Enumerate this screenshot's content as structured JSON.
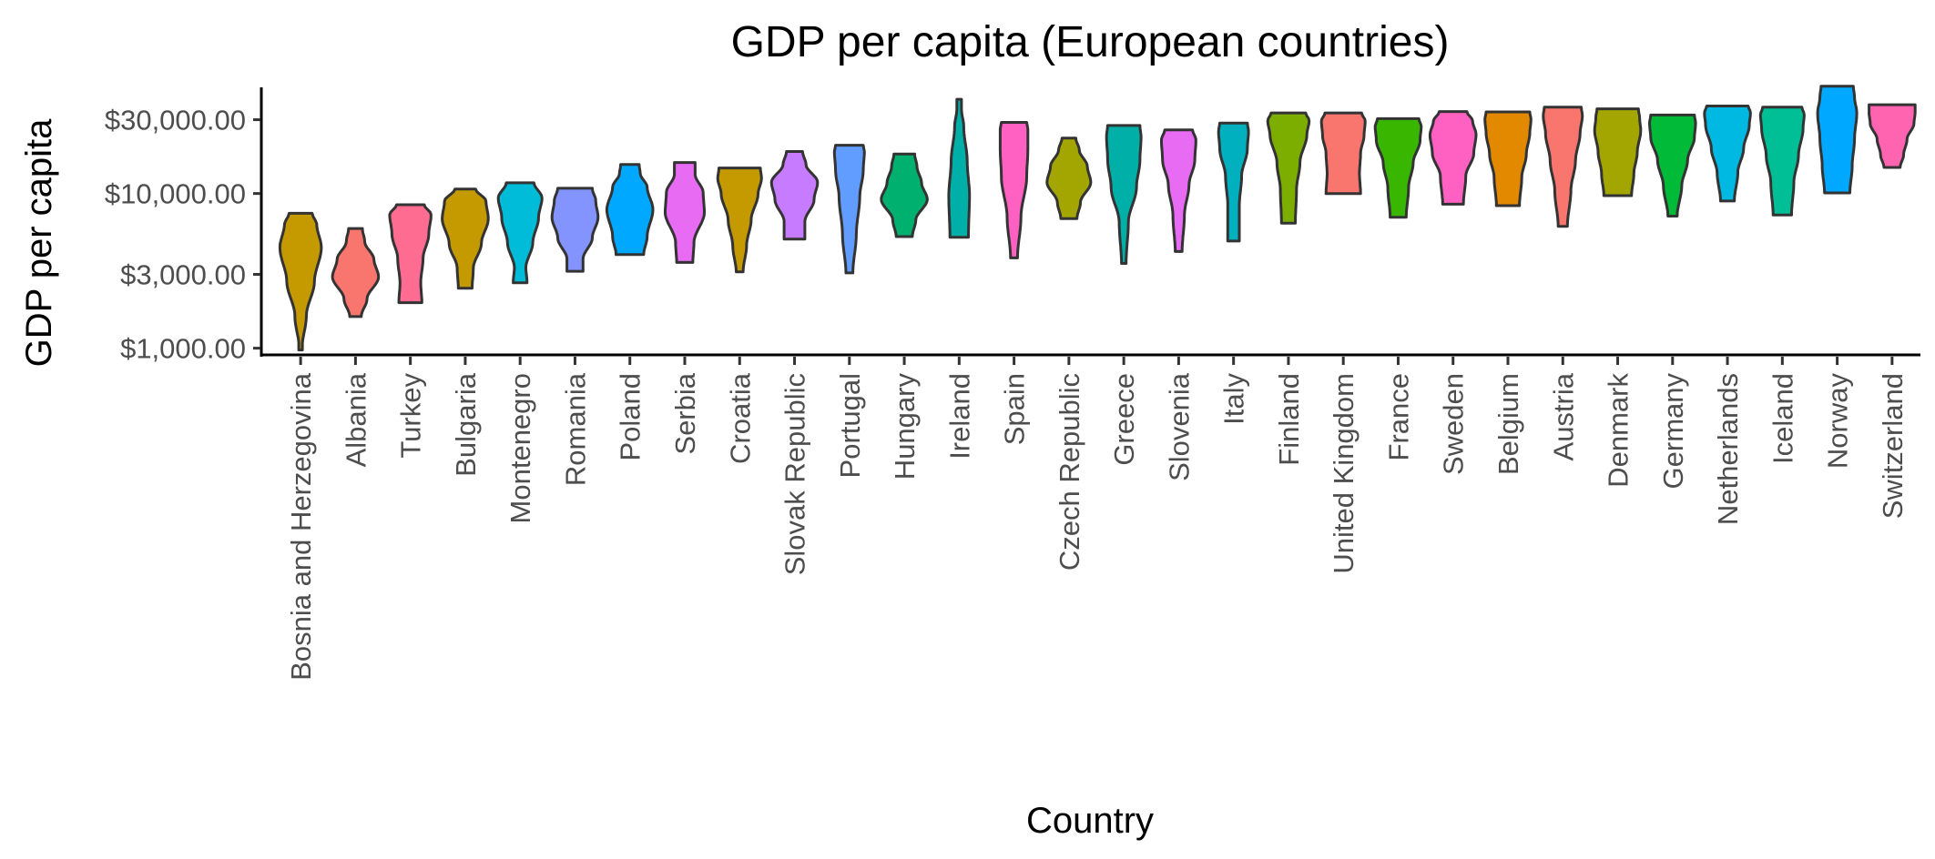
{
  "chart_data": {
    "type": "violin",
    "title": "GDP per capita (European countries)",
    "xlabel": "Country",
    "ylabel": "GDP per capita",
    "yscale": "log",
    "ylim": [
      930,
      46000
    ],
    "yticks": [
      {
        "value": 1000,
        "label": "$1,000.00"
      },
      {
        "value": 3000,
        "label": "$3,000.00"
      },
      {
        "value": 10000,
        "label": "$10,000.00"
      },
      {
        "value": 30000,
        "label": "$30,000.00"
      }
    ],
    "grid": false,
    "legend": "none",
    "series": [
      {
        "category": "Bosnia and Herzegovina",
        "color": "#C49A00",
        "min": 974,
        "max": 7446,
        "profile": [
          [
            0,
            0.05
          ],
          [
            0.25,
            0.25
          ],
          [
            0.5,
            0.6
          ],
          [
            0.75,
            0.9
          ],
          [
            0.92,
            0.7
          ],
          [
            1,
            0.5
          ]
        ]
      },
      {
        "category": "Albania",
        "color": "#F8766D",
        "min": 1601,
        "max": 5937,
        "profile": [
          [
            0,
            0.25
          ],
          [
            0.2,
            0.5
          ],
          [
            0.45,
            1
          ],
          [
            0.65,
            0.8
          ],
          [
            0.85,
            0.4
          ],
          [
            1,
            0.3
          ]
        ]
      },
      {
        "category": "Turkey",
        "color": "#FF6C91",
        "min": 1969,
        "max": 8458,
        "profile": [
          [
            0,
            0.5
          ],
          [
            0.2,
            0.45
          ],
          [
            0.45,
            0.55
          ],
          [
            0.7,
            0.8
          ],
          [
            0.9,
            0.9
          ],
          [
            1,
            0.6
          ]
        ]
      },
      {
        "category": "Bulgaria",
        "color": "#C49A00",
        "min": 2444,
        "max": 10681,
        "profile": [
          [
            0,
            0.3
          ],
          [
            0.2,
            0.35
          ],
          [
            0.45,
            0.7
          ],
          [
            0.7,
            1
          ],
          [
            0.88,
            0.9
          ],
          [
            1,
            0.45
          ]
        ]
      },
      {
        "category": "Montenegro",
        "color": "#00BCD8",
        "min": 2648,
        "max": 11733,
        "profile": [
          [
            0,
            0.3
          ],
          [
            0.15,
            0.25
          ],
          [
            0.4,
            0.55
          ],
          [
            0.65,
            0.8
          ],
          [
            0.85,
            0.95
          ],
          [
            1,
            0.6
          ]
        ]
      },
      {
        "category": "Romania",
        "color": "#8494FF",
        "min": 3145,
        "max": 10808,
        "profile": [
          [
            0,
            0.35
          ],
          [
            0.15,
            0.35
          ],
          [
            0.4,
            0.75
          ],
          [
            0.65,
            1
          ],
          [
            0.85,
            0.9
          ],
          [
            1,
            0.75
          ]
        ]
      },
      {
        "category": "Poland",
        "color": "#00A9FF",
        "min": 4029,
        "max": 15390,
        "profile": [
          [
            0,
            0.6
          ],
          [
            0.2,
            0.75
          ],
          [
            0.5,
            1
          ],
          [
            0.75,
            0.75
          ],
          [
            0.9,
            0.45
          ],
          [
            1,
            0.4
          ]
        ]
      },
      {
        "category": "Serbia",
        "color": "#E76BF3",
        "min": 3582,
        "max": 15870,
        "profile": [
          [
            0,
            0.35
          ],
          [
            0.2,
            0.4
          ],
          [
            0.5,
            0.85
          ],
          [
            0.7,
            0.8
          ],
          [
            0.88,
            0.45
          ],
          [
            1,
            0.45
          ]
        ]
      },
      {
        "category": "Croatia",
        "color": "#C49A00",
        "min": 3119,
        "max": 14619,
        "profile": [
          [
            0,
            0.15
          ],
          [
            0.25,
            0.3
          ],
          [
            0.5,
            0.5
          ],
          [
            0.75,
            0.8
          ],
          [
            0.9,
            0.95
          ],
          [
            1,
            0.9
          ]
        ]
      },
      {
        "category": "Slovak Republic",
        "color": "#C77CFF",
        "min": 5074,
        "max": 18678,
        "profile": [
          [
            0,
            0.45
          ],
          [
            0.2,
            0.45
          ],
          [
            0.45,
            0.85
          ],
          [
            0.65,
            1
          ],
          [
            0.85,
            0.5
          ],
          [
            1,
            0.35
          ]
        ]
      },
      {
        "category": "Portugal",
        "color": "#619CFF",
        "min": 3068,
        "max": 20510,
        "profile": [
          [
            0,
            0.15
          ],
          [
            0.3,
            0.3
          ],
          [
            0.6,
            0.45
          ],
          [
            0.8,
            0.6
          ],
          [
            0.95,
            0.65
          ],
          [
            1,
            0.6
          ]
        ]
      },
      {
        "category": "Hungary",
        "color": "#00B06F",
        "min": 5264,
        "max": 18009,
        "profile": [
          [
            0,
            0.35
          ],
          [
            0.2,
            0.5
          ],
          [
            0.45,
            1
          ],
          [
            0.65,
            0.75
          ],
          [
            0.85,
            0.55
          ],
          [
            1,
            0.45
          ]
        ]
      },
      {
        "category": "Ireland",
        "color": "#00B0A8",
        "min": 5210,
        "max": 40676,
        "profile": [
          [
            0,
            0.4
          ],
          [
            0.3,
            0.45
          ],
          [
            0.55,
            0.35
          ],
          [
            0.8,
            0.2
          ],
          [
            0.93,
            0.1
          ],
          [
            1,
            0.1
          ]
        ]
      },
      {
        "category": "Spain",
        "color": "#FF61C3",
        "min": 3834,
        "max": 28821,
        "profile": [
          [
            0,
            0.15
          ],
          [
            0.3,
            0.3
          ],
          [
            0.6,
            0.55
          ],
          [
            0.8,
            0.6
          ],
          [
            0.95,
            0.6
          ],
          [
            1,
            0.55
          ]
        ]
      },
      {
        "category": "Czech Republic",
        "color": "#A3A500",
        "min": 6876,
        "max": 22833,
        "profile": [
          [
            0,
            0.35
          ],
          [
            0.2,
            0.5
          ],
          [
            0.45,
            0.95
          ],
          [
            0.65,
            0.8
          ],
          [
            0.85,
            0.45
          ],
          [
            1,
            0.3
          ]
        ]
      },
      {
        "category": "Greece",
        "color": "#00B0A8",
        "min": 3530,
        "max": 27538,
        "profile": [
          [
            0,
            0.1
          ],
          [
            0.3,
            0.2
          ],
          [
            0.55,
            0.55
          ],
          [
            0.75,
            0.7
          ],
          [
            0.92,
            0.75
          ],
          [
            1,
            0.7
          ]
        ]
      },
      {
        "category": "Slovenia",
        "color": "#E76BF3",
        "min": 4215,
        "max": 25768,
        "profile": [
          [
            0,
            0.15
          ],
          [
            0.3,
            0.25
          ],
          [
            0.55,
            0.45
          ],
          [
            0.75,
            0.7
          ],
          [
            0.92,
            0.75
          ],
          [
            1,
            0.6
          ]
        ]
      },
      {
        "category": "Italy",
        "color": "#00B0BE",
        "min": 4931,
        "max": 28570,
        "profile": [
          [
            0,
            0.25
          ],
          [
            0.3,
            0.25
          ],
          [
            0.55,
            0.35
          ],
          [
            0.78,
            0.6
          ],
          [
            0.93,
            0.65
          ],
          [
            1,
            0.6
          ]
        ]
      },
      {
        "category": "Finland",
        "color": "#7CAE00",
        "min": 6425,
        "max": 33207,
        "profile": [
          [
            0,
            0.3
          ],
          [
            0.3,
            0.35
          ],
          [
            0.55,
            0.5
          ],
          [
            0.8,
            0.8
          ],
          [
            0.93,
            0.9
          ],
          [
            1,
            0.75
          ]
        ]
      },
      {
        "category": "United Kingdom",
        "color": "#F8766D",
        "min": 9979,
        "max": 33203,
        "profile": [
          [
            0,
            0.75
          ],
          [
            0.25,
            0.7
          ],
          [
            0.5,
            0.75
          ],
          [
            0.72,
            0.9
          ],
          [
            0.9,
            0.95
          ],
          [
            1,
            0.8
          ]
        ]
      },
      {
        "category": "France",
        "color": "#39B600",
        "min": 7030,
        "max": 30470,
        "profile": [
          [
            0,
            0.35
          ],
          [
            0.3,
            0.45
          ],
          [
            0.55,
            0.65
          ],
          [
            0.78,
            0.95
          ],
          [
            0.92,
            1
          ],
          [
            1,
            0.9
          ]
        ]
      },
      {
        "category": "Sweden",
        "color": "#FF61C3",
        "min": 8528,
        "max": 33860,
        "profile": [
          [
            0,
            0.45
          ],
          [
            0.3,
            0.55
          ],
          [
            0.55,
            0.9
          ],
          [
            0.75,
            1
          ],
          [
            0.9,
            0.85
          ],
          [
            1,
            0.6
          ]
        ]
      },
      {
        "category": "Belgium",
        "color": "#E38900",
        "min": 8343,
        "max": 33693,
        "profile": [
          [
            0,
            0.5
          ],
          [
            0.3,
            0.6
          ],
          [
            0.55,
            0.8
          ],
          [
            0.78,
            0.95
          ],
          [
            0.92,
            1
          ],
          [
            1,
            0.95
          ]
        ]
      },
      {
        "category": "Austria",
        "color": "#F8766D",
        "min": 6137,
        "max": 36126,
        "profile": [
          [
            0,
            0.2
          ],
          [
            0.3,
            0.35
          ],
          [
            0.55,
            0.55
          ],
          [
            0.78,
            0.75
          ],
          [
            0.93,
            0.85
          ],
          [
            1,
            0.8
          ]
        ]
      },
      {
        "category": "Denmark",
        "color": "#A3A500",
        "min": 9692,
        "max": 35278,
        "profile": [
          [
            0,
            0.6
          ],
          [
            0.25,
            0.7
          ],
          [
            0.5,
            0.85
          ],
          [
            0.75,
            1
          ],
          [
            0.9,
            0.95
          ],
          [
            1,
            0.9
          ]
        ]
      },
      {
        "category": "Germany",
        "color": "#00BA38",
        "min": 7144,
        "max": 32170,
        "profile": [
          [
            0,
            0.2
          ],
          [
            0.3,
            0.4
          ],
          [
            0.55,
            0.65
          ],
          [
            0.78,
            0.95
          ],
          [
            0.92,
            1
          ],
          [
            1,
            0.95
          ]
        ]
      },
      {
        "category": "Netherlands",
        "color": "#00B9E3",
        "min": 8941,
        "max": 36798,
        "profile": [
          [
            0,
            0.3
          ],
          [
            0.3,
            0.45
          ],
          [
            0.55,
            0.7
          ],
          [
            0.8,
            0.95
          ],
          [
            0.93,
            1
          ],
          [
            1,
            0.9
          ]
        ]
      },
      {
        "category": "Iceland",
        "color": "#00BF96",
        "min": 7268,
        "max": 36181,
        "profile": [
          [
            0,
            0.4
          ],
          [
            0.3,
            0.5
          ],
          [
            0.55,
            0.7
          ],
          [
            0.8,
            0.9
          ],
          [
            0.93,
            0.95
          ],
          [
            1,
            0.85
          ]
        ]
      },
      {
        "category": "Norway",
        "color": "#00A9FF",
        "min": 10095,
        "max": 49357,
        "profile": [
          [
            0,
            0.55
          ],
          [
            0.25,
            0.65
          ],
          [
            0.5,
            0.75
          ],
          [
            0.75,
            0.85
          ],
          [
            0.9,
            0.75
          ],
          [
            1,
            0.7
          ]
        ]
      },
      {
        "category": "Switzerland",
        "color": "#FF64B0",
        "min": 14734,
        "max": 37506,
        "profile": [
          [
            0,
            0.35
          ],
          [
            0.2,
            0.5
          ],
          [
            0.45,
            0.65
          ],
          [
            0.7,
            0.95
          ],
          [
            0.88,
            1
          ],
          [
            1,
            1
          ]
        ]
      }
    ]
  }
}
